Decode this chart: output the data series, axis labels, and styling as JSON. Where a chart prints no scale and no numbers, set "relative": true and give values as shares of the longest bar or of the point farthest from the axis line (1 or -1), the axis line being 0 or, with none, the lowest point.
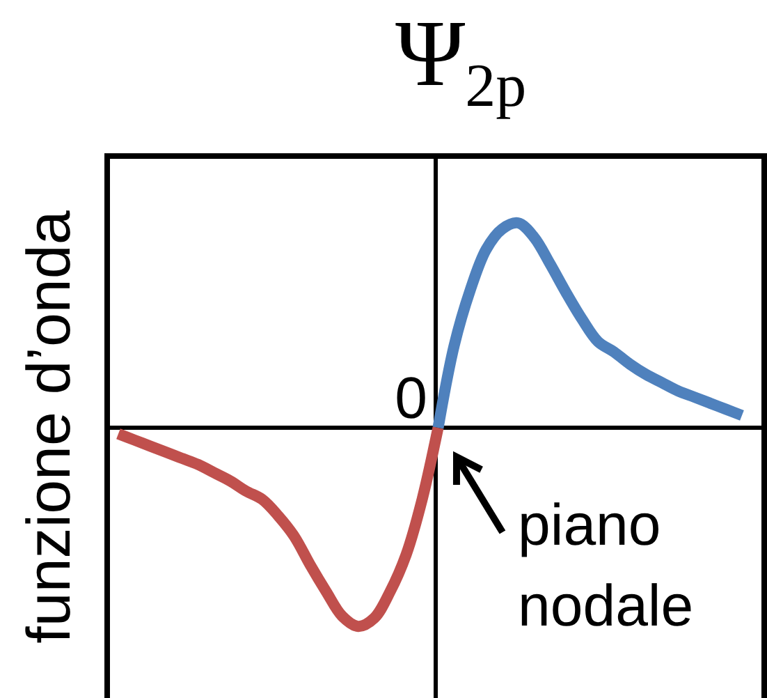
{
  "chart_data": {
    "type": "line",
    "title": "Ψ$_{2p}$",
    "ylabel": "funzione d’onda",
    "relative": true,
    "categories": [
      null,
      null,
      null,
      null,
      null,
      null,
      null,
      null,
      null,
      null,
      null,
      null,
      null,
      null,
      null,
      null,
      null,
      null,
      null,
      null,
      null,
      null,
      null,
      null,
      null,
      null,
      null,
      null,
      null,
      null,
      null,
      null,
      null,
      null,
      null,
      null,
      null,
      null,
      null,
      null
    ],
    "series": [
      {
        "color": "#c0504d",
        "values": [
          -0.03,
          -0.06,
          -0.09,
          -0.12,
          -0.15,
          -0.18,
          -0.22,
          -0.26,
          -0.31,
          -0.35,
          -0.43,
          -0.53,
          -0.67,
          -0.8,
          -0.92,
          -0.97,
          -0.93,
          -0.8,
          -0.62,
          -0.35,
          0,
          null,
          null,
          null,
          null,
          null,
          null,
          null,
          null,
          null,
          null,
          null,
          null,
          null,
          null,
          null,
          null,
          null,
          null,
          null
        ]
      },
      {
        "color": "#4f81bd",
        "values": [
          null,
          null,
          null,
          null,
          null,
          null,
          null,
          null,
          null,
          null,
          null,
          null,
          null,
          null,
          null,
          null,
          null,
          null,
          null,
          null,
          0,
          0.4,
          0.67,
          0.87,
          0.97,
          1,
          0.93,
          0.8,
          0.66,
          0.53,
          0.42,
          0.37,
          0.31,
          0.26,
          0.22,
          0.18,
          0.15,
          0.12,
          0.09,
          0.06
        ]
      }
    ],
    "annotations": [
      "0",
      "piano nodale"
    ]
  }
}
